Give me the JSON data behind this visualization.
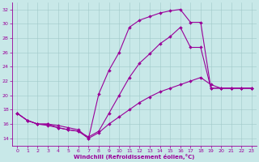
{
  "xlabel": "Windchill (Refroidissement éolien,°C)",
  "bg_color": "#c8e8e8",
  "line_color": "#990099",
  "grid_color": "#a0c8c8",
  "ylim": [
    13,
    33
  ],
  "xlim": [
    -0.5,
    23.5
  ],
  "yticks": [
    14,
    16,
    18,
    20,
    22,
    24,
    26,
    28,
    30,
    32
  ],
  "xticks": [
    0,
    1,
    2,
    3,
    4,
    5,
    6,
    7,
    8,
    9,
    10,
    11,
    12,
    13,
    14,
    15,
    16,
    17,
    18,
    19,
    20,
    21,
    22,
    23
  ],
  "line1_x": [
    0,
    1,
    2,
    3,
    4,
    5,
    6,
    7,
    8,
    9,
    10,
    11,
    12,
    13,
    14,
    15,
    16,
    17,
    18,
    19,
    20,
    21,
    22,
    23
  ],
  "line1_y": [
    17.5,
    16.5,
    16.0,
    15.8,
    15.5,
    15.2,
    15.0,
    14.0,
    14.8,
    16.0,
    17.0,
    18.0,
    19.0,
    19.8,
    20.5,
    21.0,
    21.5,
    22.0,
    22.5,
    21.5,
    21.0,
    21.0,
    21.0,
    21.0
  ],
  "line2_x": [
    0,
    1,
    2,
    3,
    4,
    5,
    6,
    7,
    8,
    9,
    10,
    11,
    12,
    13,
    14,
    15,
    16,
    17,
    18,
    19,
    20,
    21,
    22,
    23
  ],
  "line2_y": [
    17.5,
    16.5,
    16.0,
    16.0,
    15.8,
    15.5,
    15.2,
    14.0,
    20.2,
    23.5,
    26.0,
    29.5,
    30.5,
    31.0,
    31.5,
    31.8,
    32.0,
    30.2,
    30.2,
    21.0,
    21.0,
    21.0,
    21.0,
    21.0
  ],
  "line3_x": [
    0,
    1,
    2,
    3,
    4,
    5,
    6,
    7,
    8,
    9,
    10,
    11,
    12,
    13,
    14,
    15,
    16,
    17,
    18,
    19,
    20,
    21,
    22,
    23
  ],
  "line3_y": [
    17.5,
    16.5,
    16.0,
    16.0,
    15.5,
    15.2,
    15.0,
    14.2,
    15.0,
    17.5,
    20.0,
    22.5,
    24.5,
    25.8,
    27.2,
    28.2,
    29.5,
    26.7,
    26.7,
    21.0,
    21.0,
    21.0,
    21.0,
    21.0
  ]
}
